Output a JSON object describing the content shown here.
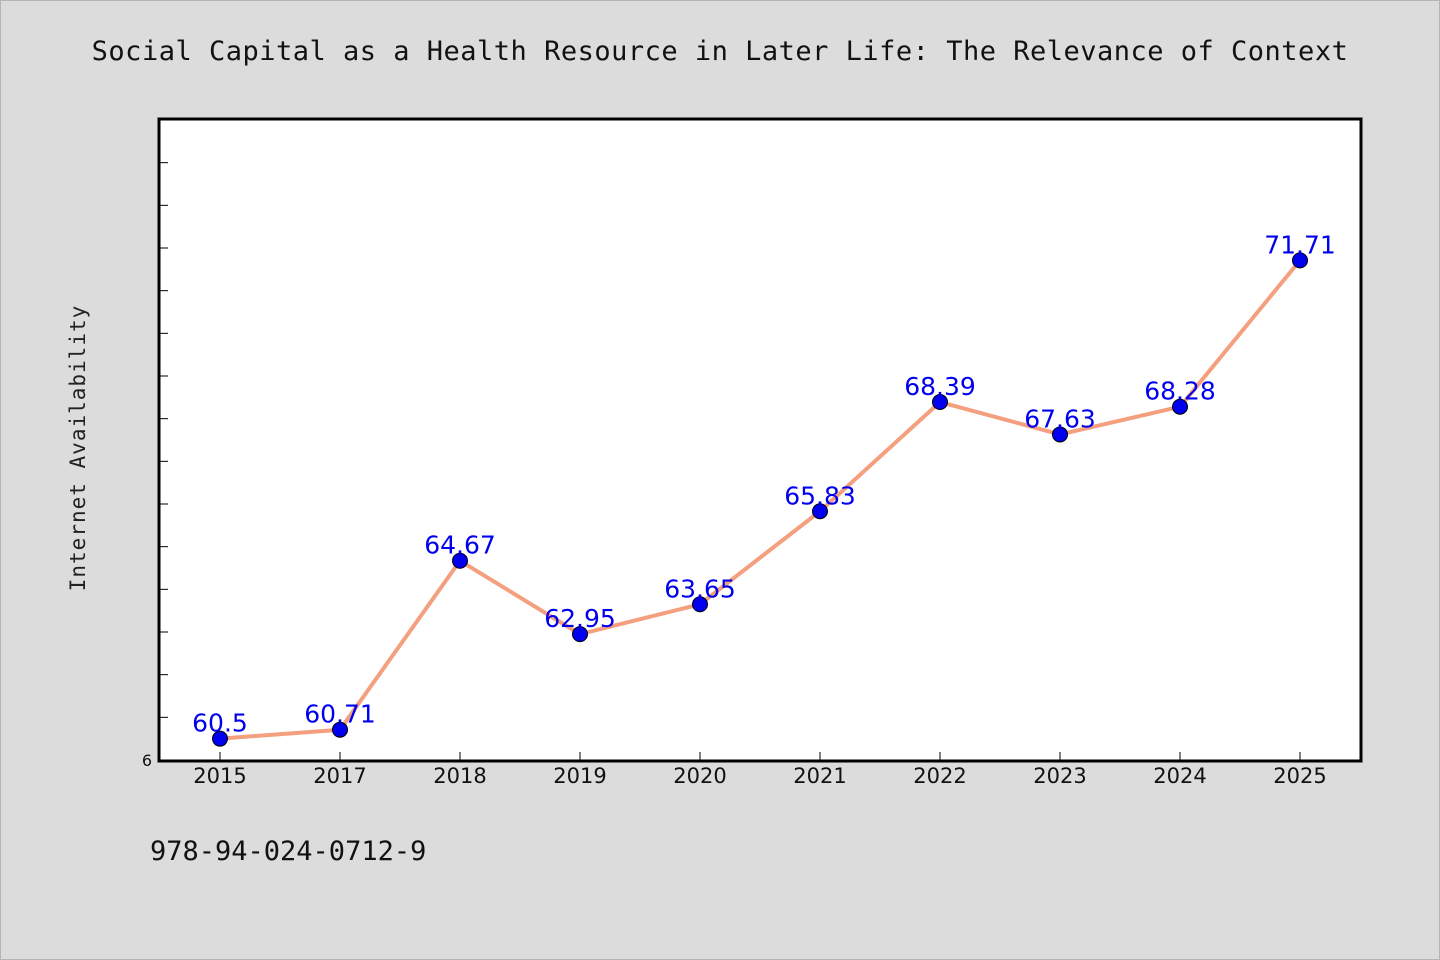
{
  "chart_data": {
    "type": "line",
    "title": "Social Capital as a Health Resource in Later Life: The Relevance of Context",
    "xlabel": "",
    "ylabel": "Internet Availability",
    "categories": [
      "2015",
      "2017",
      "2018",
      "2019",
      "2020",
      "2021",
      "2022",
      "2023",
      "2024",
      "2025"
    ],
    "series": [
      {
        "values": [
          60.5,
          60.71,
          64.67,
          62.95,
          63.65,
          65.83,
          68.39,
          67.63,
          68.28,
          71.71
        ],
        "data_labels": [
          "60.5",
          "60.71",
          "64.67",
          "62.95",
          "63.65",
          "65.83",
          "68.39",
          "67.63",
          "68.28",
          "71.71"
        ]
      }
    ],
    "ylim": [
      60,
      75
    ],
    "y_tick_labels": [
      "6"
    ],
    "grid": false,
    "legend": "none",
    "line_color": "#f4a07f",
    "marker_color": "#0000ee",
    "label_color": "#0000ee"
  },
  "footer": {
    "code": "978-94-024-0712-9"
  }
}
